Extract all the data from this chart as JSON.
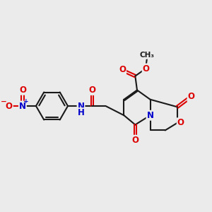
{
  "bg_color": "#EBEBEB",
  "bond_color": "#1a1a1a",
  "bw": 1.5,
  "dbo": 0.055,
  "oc": "#DD0000",
  "nc": "#0000CC",
  "cc": "#1a1a1a",
  "fs": 8.5,
  "fs2": 7.5,
  "figsize": [
    3.0,
    3.0
  ],
  "dpi": 100,
  "xlim": [
    -0.5,
    10.5
  ],
  "ylim": [
    1.8,
    9.2
  ]
}
